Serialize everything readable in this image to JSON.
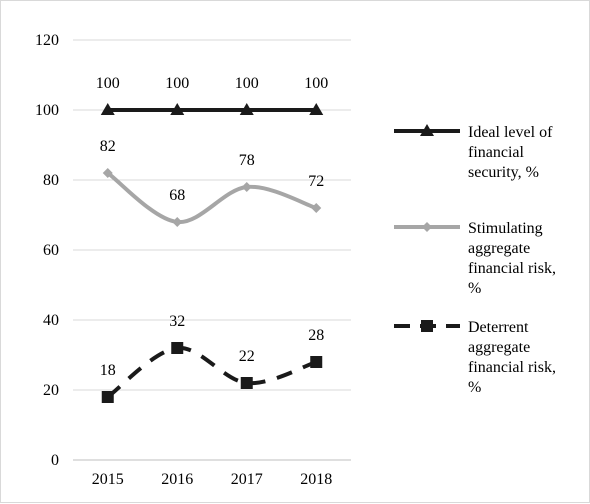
{
  "chart_data": {
    "type": "line",
    "categories": [
      "2015",
      "2016",
      "2017",
      "2018"
    ],
    "ylim": [
      0,
      120
    ],
    "yticks": [
      0,
      20,
      40,
      60,
      80,
      100,
      120
    ],
    "grid": "horizontal",
    "legend_position": "right",
    "series": [
      {
        "name": "Ideal level of financial security, %",
        "legend_lines": [
          "Ideal level of",
          "financial",
          "security, %"
        ],
        "values": [
          100,
          100,
          100,
          100
        ],
        "color": "#1a1a1a",
        "line_style": "solid",
        "marker": "triangle",
        "smooth": false
      },
      {
        "name": "Stimulating aggregate financial risk, %",
        "legend_lines": [
          "Stimulating",
          "aggregate",
          "financial risk,",
          "%"
        ],
        "values": [
          82,
          68,
          78,
          72
        ],
        "color": "#a6a6a6",
        "line_style": "solid",
        "marker": "diamond",
        "smooth": true
      },
      {
        "name": "Deterrent aggregate financial risk, %",
        "legend_lines": [
          "Deterrent",
          "aggregate",
          "financial risk,",
          "%"
        ],
        "values": [
          18,
          32,
          22,
          28
        ],
        "color": "#1a1a1a",
        "line_style": "dashed",
        "marker": "square",
        "smooth": true
      }
    ]
  }
}
